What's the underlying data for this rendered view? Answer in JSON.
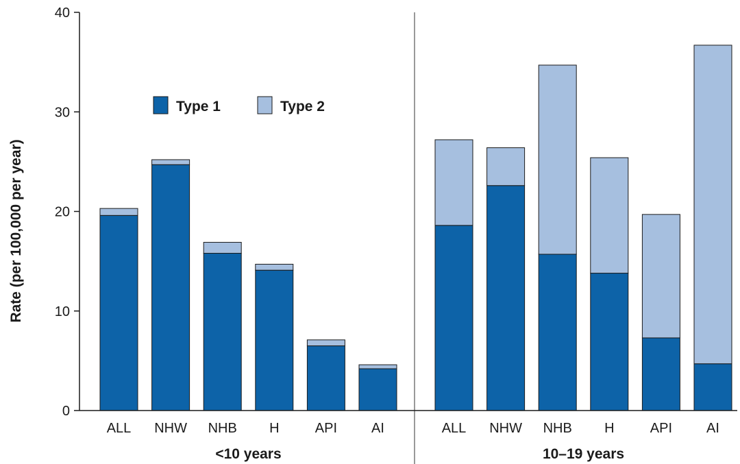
{
  "chart_data": {
    "type": "bar",
    "stacked": true,
    "ylabel": "Rate (per 100,000 per year)",
    "ylim": [
      0,
      40
    ],
    "yticks": [
      "0",
      "10",
      "20",
      "30",
      "40"
    ],
    "legend_position": "top-left",
    "groups": [
      {
        "label": "<10 years",
        "categories": [
          "ALL",
          "NHW",
          "NHB",
          "H",
          "API",
          "AI"
        ],
        "series": [
          {
            "name": "Type 1",
            "values": [
              19.6,
              24.7,
              15.8,
              14.1,
              6.5,
              4.2
            ]
          },
          {
            "name": "Type 2",
            "values": [
              0.7,
              0.5,
              1.1,
              0.6,
              0.6,
              0.4
            ]
          }
        ]
      },
      {
        "label": "10–19 years",
        "categories": [
          "ALL",
          "NHW",
          "NHB",
          "H",
          "API",
          "AI"
        ],
        "series": [
          {
            "name": "Type 1",
            "values": [
              18.6,
              22.6,
              15.7,
              13.8,
              7.3,
              4.7
            ]
          },
          {
            "name": "Type 2",
            "values": [
              8.6,
              3.8,
              19.0,
              11.6,
              12.4,
              32.0
            ]
          }
        ]
      }
    ],
    "colors": {
      "Type 1": "#0d63a8",
      "Type 2": "#a6bfdf",
      "outline": "#1a1a1a",
      "divider": "#999999"
    }
  }
}
